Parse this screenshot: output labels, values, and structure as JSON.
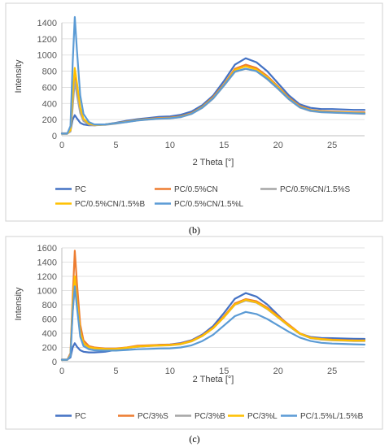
{
  "panels": [
    {
      "caption": "(b)",
      "legend": [
        "PC",
        "PC/0.5%CN",
        "PC/0.5%CN/1.5%S",
        "PC/0.5%CN/1.5%B",
        "PC/0.5%CN/1.5%L"
      ]
    },
    {
      "caption": "(c)",
      "legend": [
        "PC",
        "PC/3%S",
        "PC/3%B",
        "PC/3%L",
        "PC/1.5%L/1.5%B"
      ]
    }
  ],
  "chart_data": [
    {
      "type": "line",
      "title": "",
      "xlabel": "2 Theta [°]",
      "ylabel": "Intensity",
      "xlim": [
        0,
        28
      ],
      "ylim": [
        0,
        1400
      ],
      "xticks": [
        0,
        5,
        10,
        15,
        20,
        25
      ],
      "yticks": [
        0,
        200,
        400,
        600,
        800,
        1000,
        1200,
        1400
      ],
      "grid": "horizontal",
      "legend_position": "bottom",
      "x": [
        0,
        0.5,
        0.8,
        1.0,
        1.2,
        1.4,
        1.7,
        2.0,
        2.5,
        3,
        4,
        5,
        6,
        7,
        8,
        9,
        10,
        11,
        12,
        13,
        14,
        15,
        16,
        17,
        18,
        19,
        20,
        21,
        22,
        23,
        24,
        25,
        26,
        27,
        28
      ],
      "series": [
        {
          "name": "PC",
          "color": "#4472c4",
          "values": [
            30,
            30,
            60,
            200,
            255,
            215,
            160,
            140,
            130,
            130,
            140,
            160,
            185,
            205,
            220,
            235,
            240,
            260,
            300,
            380,
            500,
            680,
            880,
            960,
            910,
            800,
            650,
            500,
            390,
            345,
            330,
            330,
            325,
            320,
            320
          ]
        },
        {
          "name": "PC/0.5%CN",
          "color": "#ed7d31",
          "values": [
            25,
            25,
            60,
            400,
            720,
            550,
            300,
            190,
            140,
            130,
            140,
            155,
            175,
            195,
            210,
            220,
            225,
            240,
            280,
            360,
            480,
            640,
            830,
            880,
            840,
            740,
            610,
            470,
            370,
            320,
            305,
            300,
            295,
            290,
            290
          ]
        },
        {
          "name": "PC/0.5%CN/1.5%S",
          "color": "#a5a5a5",
          "values": [
            25,
            25,
            50,
            350,
            680,
            500,
            280,
            180,
            140,
            130,
            135,
            150,
            170,
            188,
            200,
            210,
            215,
            230,
            270,
            345,
            460,
            620,
            790,
            830,
            800,
            700,
            580,
            450,
            350,
            305,
            290,
            285,
            280,
            275,
            270
          ]
        },
        {
          "name": "PC/0.5%CN/1.5%B",
          "color": "#ffc000",
          "values": [
            25,
            25,
            70,
            500,
            840,
            650,
            350,
            210,
            150,
            135,
            140,
            155,
            172,
            192,
            205,
            215,
            220,
            235,
            275,
            355,
            470,
            630,
            815,
            860,
            820,
            725,
            600,
            460,
            360,
            315,
            298,
            292,
            288,
            283,
            280
          ]
        },
        {
          "name": "PC/0.5%CN/1.5%L",
          "color": "#5b9bd5",
          "values": [
            25,
            25,
            120,
            900,
            1470,
            1050,
            500,
            270,
            170,
            140,
            140,
            155,
            170,
            190,
            202,
            212,
            217,
            232,
            272,
            350,
            465,
            625,
            795,
            830,
            800,
            705,
            585,
            455,
            355,
            310,
            293,
            288,
            284,
            279,
            276
          ]
        }
      ]
    },
    {
      "type": "line",
      "title": "",
      "xlabel": "2 Theta [°]",
      "ylabel": "Intensity",
      "xlim": [
        0,
        28
      ],
      "ylim": [
        0,
        1600
      ],
      "xticks": [
        0,
        5,
        10,
        15,
        20,
        25
      ],
      "yticks": [
        0,
        200,
        400,
        600,
        800,
        1000,
        1200,
        1400,
        1600
      ],
      "grid": "horizontal",
      "legend_position": "bottom",
      "x": [
        0,
        0.5,
        0.8,
        1.0,
        1.2,
        1.4,
        1.7,
        2.0,
        2.5,
        3,
        4,
        5,
        6,
        7,
        8,
        9,
        10,
        11,
        12,
        13,
        14,
        15,
        16,
        17,
        18,
        19,
        20,
        21,
        22,
        23,
        24,
        25,
        26,
        27,
        28
      ],
      "series": [
        {
          "name": "PC",
          "color": "#4472c4",
          "values": [
            30,
            30,
            60,
            200,
            260,
            210,
            160,
            140,
            130,
            130,
            140,
            165,
            190,
            210,
            222,
            237,
            242,
            262,
            302,
            382,
            502,
            685,
            885,
            965,
            915,
            805,
            655,
            505,
            395,
            348,
            332,
            330,
            326,
            322,
            320
          ]
        },
        {
          "name": "PC/3%S",
          "color": "#ed7d31",
          "values": [
            25,
            25,
            120,
            900,
            1560,
            1100,
            520,
            300,
            220,
            200,
            185,
            185,
            200,
            225,
            230,
            235,
            240,
            255,
            295,
            370,
            480,
            640,
            820,
            880,
            850,
            760,
            640,
            520,
            400,
            340,
            320,
            310,
            305,
            300,
            300
          ]
        },
        {
          "name": "PC/3%B",
          "color": "#a5a5a5",
          "values": [
            25,
            25,
            100,
            700,
            1070,
            800,
            400,
            250,
            200,
            185,
            175,
            175,
            190,
            210,
            220,
            225,
            230,
            245,
            285,
            360,
            470,
            625,
            800,
            860,
            830,
            740,
            620,
            500,
            390,
            330,
            310,
            300,
            295,
            290,
            290
          ]
        },
        {
          "name": "PC/3%L",
          "color": "#ffc000",
          "values": [
            25,
            25,
            90,
            800,
            1200,
            850,
            420,
            260,
            205,
            190,
            180,
            180,
            195,
            212,
            222,
            228,
            232,
            248,
            288,
            362,
            472,
            628,
            805,
            870,
            835,
            745,
            625,
            505,
            395,
            335,
            315,
            305,
            300,
            295,
            295
          ]
        },
        {
          "name": "PC/1.5%L/1.5%B",
          "color": "#5b9bd5",
          "values": [
            25,
            25,
            80,
            700,
            1060,
            760,
            350,
            220,
            175,
            160,
            155,
            155,
            165,
            175,
            180,
            185,
            188,
            200,
            230,
            290,
            380,
            510,
            640,
            700,
            670,
            600,
            510,
            420,
            340,
            290,
            265,
            255,
            250,
            245,
            240
          ]
        }
      ]
    }
  ]
}
